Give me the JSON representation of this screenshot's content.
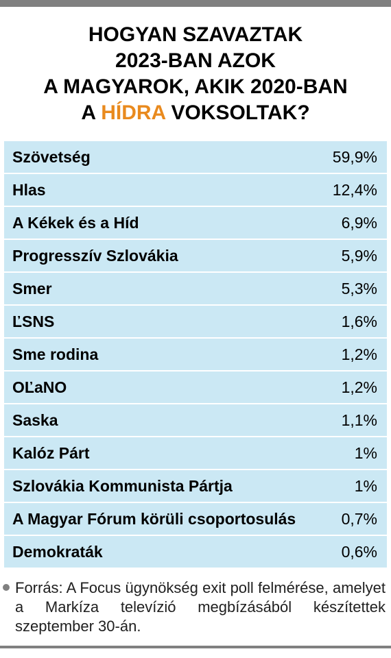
{
  "type": "table",
  "title_lines": [
    "HOGYAN SZAVAZTAK",
    "2023-BAN AZOK",
    "A MAGYAROK, AKIK 2020-BAN",
    "A HÍDRA VOKSOLTAK?"
  ],
  "highlight_word": "HÍDRA",
  "highlight_color": "#e98a1e",
  "row_bg": "#cbe8f4",
  "text_color": "#000000",
  "rows": [
    {
      "party": "Szövetség",
      "pct": "59,9%"
    },
    {
      "party": "Hlas",
      "pct": "12,4%"
    },
    {
      "party": "A Kékek és a Híd",
      "pct": "6,9%"
    },
    {
      "party": "Progresszív Szlovákia",
      "pct": "5,9%"
    },
    {
      "party": "Smer",
      "pct": "5,3%"
    },
    {
      "party": "ĽSNS",
      "pct": "1,6%"
    },
    {
      "party": "Sme rodina",
      "pct": "1,2%"
    },
    {
      "party": "OĽaNO",
      "pct": "1,2%"
    },
    {
      "party": "Saska",
      "pct": "1,1%"
    },
    {
      "party": "Kalóz Párt",
      "pct": "1%"
    },
    {
      "party": "Szlovákia Kommunista Pártja",
      "pct": "1%"
    },
    {
      "party": "A Magyar Fórum körüli csoportosulás",
      "pct": "0,7%"
    },
    {
      "party": "Demokraták",
      "pct": "0,6%"
    }
  ],
  "source": "Forrás: A Focus ügynökség exit poll felmérése, amelyet a Markíza televízió megbízásából készítettek szeptember 30-án.",
  "font_sizes": {
    "title": 30,
    "row": 23,
    "source": 22
  }
}
